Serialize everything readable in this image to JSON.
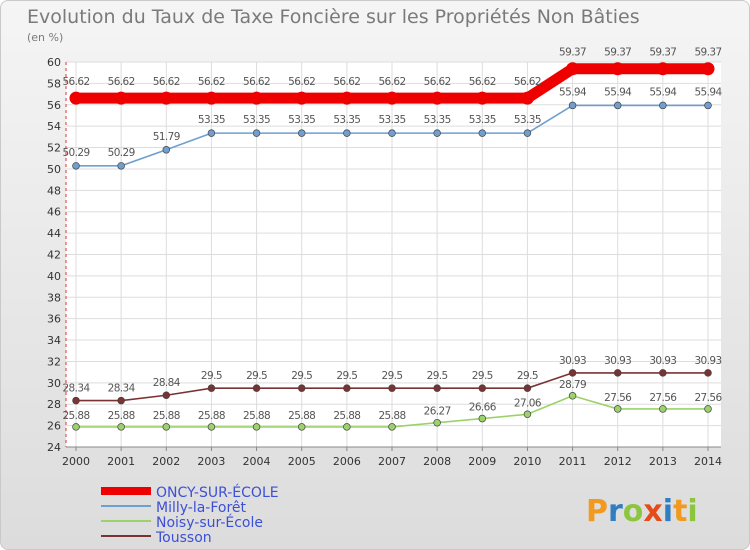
{
  "chart_data": {
    "type": "line",
    "title": "Evolution du Taux de Taxe Foncière sur les Propriétés Non Bâties",
    "subtitle": "(en %)",
    "xlabel": "",
    "ylabel": "",
    "x": [
      "2000",
      "2001",
      "2002",
      "2003",
      "2004",
      "2005",
      "2006",
      "2007",
      "2008",
      "2009",
      "2010",
      "2011",
      "2012",
      "2013",
      "2014"
    ],
    "ylim": [
      24,
      60
    ],
    "yticks": [
      24,
      26,
      28,
      30,
      32,
      34,
      36,
      38,
      40,
      42,
      44,
      46,
      48,
      50,
      52,
      54,
      56,
      58,
      60
    ],
    "grid": true,
    "series": [
      {
        "name": "ONCY-SUR-ÉCOLE",
        "color": "#ee0000",
        "values": [
          56.62,
          56.62,
          56.62,
          56.62,
          56.62,
          56.62,
          56.62,
          56.62,
          56.62,
          56.62,
          56.62,
          59.37,
          59.37,
          59.37,
          59.37
        ],
        "labels": [
          "56.62",
          "56.62",
          "56.62",
          "56.62",
          "56.62",
          "56.62",
          "56.62",
          "56.62",
          "56.62",
          "56.62",
          "56.62",
          "59.37",
          "59.37",
          "59.37",
          "59.37"
        ]
      },
      {
        "name": "Milly-la-Forêt",
        "color": "#6f9fd0",
        "values": [
          50.29,
          50.29,
          51.79,
          53.35,
          53.35,
          53.35,
          53.35,
          53.35,
          53.35,
          53.35,
          53.35,
          55.94,
          55.94,
          55.94,
          55.94
        ],
        "labels": [
          "50.29",
          "50.29",
          "51.79",
          "53.35",
          "53.35",
          "53.35",
          "53.35",
          "53.35",
          "53.35",
          "53.35",
          "53.35",
          "55.94",
          "55.94",
          "55.94",
          "55.94"
        ]
      },
      {
        "name": "Noisy-sur-École",
        "color": "#9cd26a",
        "values": [
          25.88,
          25.88,
          25.88,
          25.88,
          25.88,
          25.88,
          25.88,
          25.88,
          26.27,
          26.66,
          27.06,
          28.79,
          27.56,
          27.56,
          27.56
        ],
        "labels": [
          "25.88",
          "25.88",
          "25.88",
          "25.88",
          "25.88",
          "25.88",
          "25.88",
          "25.88",
          "26.27",
          "26.66",
          "27.06",
          "28.79",
          "27.56",
          "27.56",
          "27.56"
        ]
      },
      {
        "name": "Tousson",
        "color": "#7a3333",
        "values": [
          28.34,
          28.34,
          28.84,
          29.5,
          29.5,
          29.5,
          29.5,
          29.5,
          29.5,
          29.5,
          29.5,
          30.93,
          30.93,
          30.93,
          30.93
        ],
        "labels": [
          "28.34",
          "28.34",
          "28.84",
          "29.5",
          "29.5",
          "29.5",
          "29.5",
          "29.5",
          "29.5",
          "29.5",
          "29.5",
          "30.93",
          "30.93",
          "30.93",
          "30.93"
        ]
      }
    ],
    "legend_position": "bottom-left"
  },
  "logo": {
    "text": "Proxiti",
    "colors": [
      "#f29a1f",
      "#2f7ec2",
      "#8cc63f",
      "#e64a19",
      "#2f7ec2",
      "#f29a1f",
      "#8cc63f"
    ]
  }
}
